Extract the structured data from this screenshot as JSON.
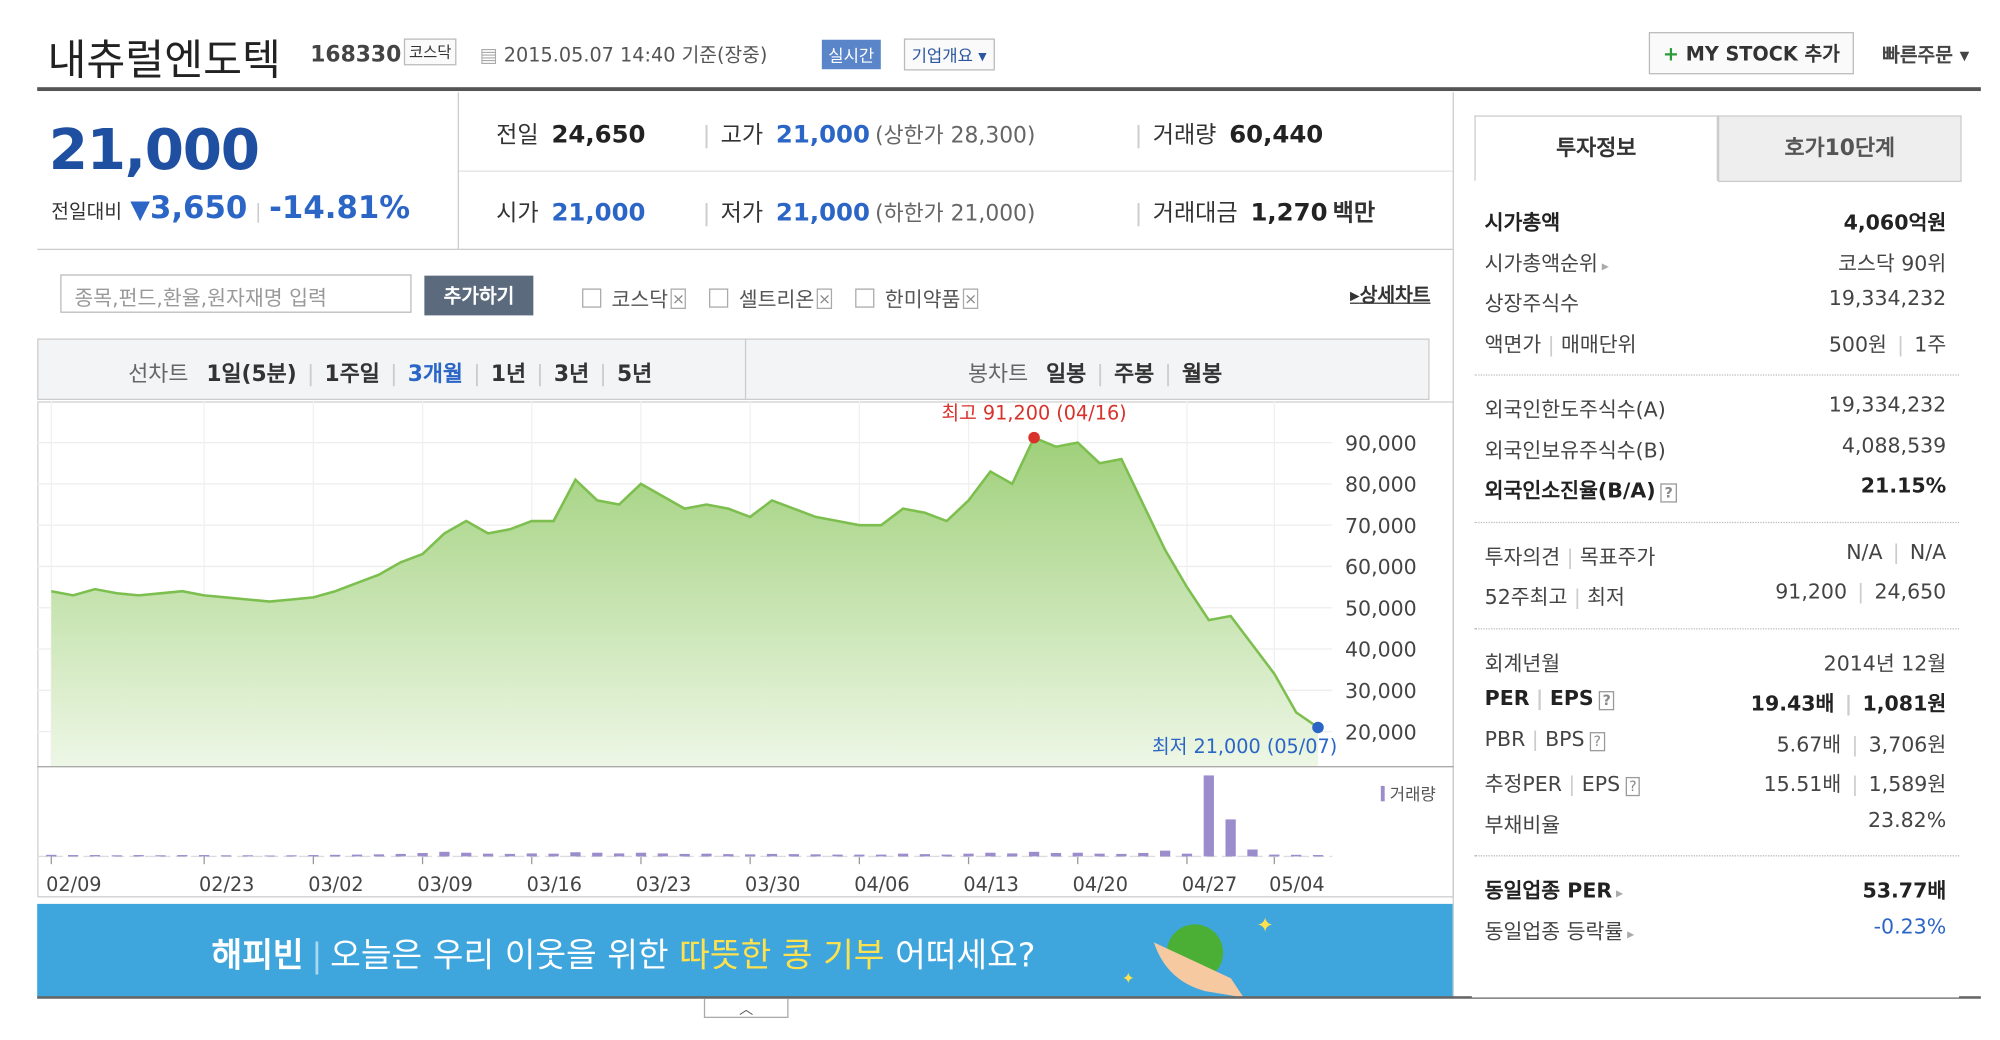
{
  "header": {
    "name": "내츄럴엔도텍",
    "code": "168330",
    "market": "코스닥",
    "datetime": "2015.05.07 14:40 기준(장중)",
    "realtime": "실시간",
    "company_info": "기업개요",
    "my_stock": "MY STOCK 추가",
    "quick_order": "빠른주문"
  },
  "price": {
    "current": "21,000",
    "change_label": "전일대비",
    "change": "3,650",
    "rate": "-14.81%"
  },
  "quotes": [
    {
      "label": "전일",
      "value": "24,650"
    },
    {
      "label": "고가",
      "value": "21,000",
      "note": "(상한가 28,300)"
    },
    {
      "label": "거래량",
      "value": "60,440"
    },
    {
      "label": "시가",
      "value": "21,000"
    },
    {
      "label": "저가",
      "value": "21,000",
      "note": "(하한가 21,000)"
    },
    {
      "label": "거래대금",
      "value": "1,270",
      "unit": "백만"
    }
  ],
  "search": {
    "placeholder": "종목,펀드,환율,원자재명 입력",
    "button": "추가하기",
    "compare": [
      "코스닥",
      "셀트리온",
      "한미약품"
    ],
    "detail": "상세차트"
  },
  "tabs": {
    "line_label": "선차트",
    "periods": [
      "1일(5분)",
      "1주일",
      "3개월",
      "1년",
      "3년",
      "5년"
    ],
    "active_period": 2,
    "candle_label": "봉차트",
    "candles": [
      "일봉",
      "주봉",
      "월봉"
    ]
  },
  "chart_data": {
    "type": "line",
    "color": "#7dbf4f",
    "categories": [
      "02/09",
      null,
      null,
      null,
      null,
      null,
      null,
      "02/23",
      null,
      null,
      null,
      null,
      "03/02",
      null,
      null,
      null,
      null,
      "03/09",
      null,
      null,
      null,
      null,
      "03/16",
      null,
      null,
      null,
      null,
      "03/23",
      null,
      null,
      null,
      null,
      "03/30",
      null,
      null,
      null,
      null,
      "04/06",
      null,
      null,
      null,
      null,
      "04/13",
      null,
      null,
      null,
      null,
      "04/20",
      null,
      null,
      null,
      null,
      "04/27",
      null,
      null,
      null,
      "05/04",
      null,
      null
    ],
    "values": [
      54000,
      53000,
      54500,
      53500,
      53000,
      53500,
      54000,
      53000,
      52500,
      52000,
      51500,
      52000,
      52500,
      54000,
      56000,
      58000,
      61000,
      63000,
      68000,
      71000,
      68000,
      69000,
      71000,
      71000,
      81000,
      76000,
      75000,
      80000,
      77000,
      74000,
      75000,
      74000,
      72000,
      76000,
      74000,
      72000,
      71000,
      70000,
      70000,
      74000,
      73000,
      71000,
      76000,
      83000,
      80000,
      91200,
      89000,
      90000,
      85000,
      86000,
      75000,
      64000,
      55000,
      47000,
      48000,
      41000,
      34000,
      24650,
      21000
    ],
    "ylim": [
      11500,
      100000
    ],
    "yticks": [
      {
        "value": 20000,
        "label": "20,000"
      },
      {
        "value": 30000,
        "label": "30,000"
      },
      {
        "value": 40000,
        "label": "40,000"
      },
      {
        "value": 50000,
        "label": "50,000"
      },
      {
        "value": 60000,
        "label": "60,000"
      },
      {
        "value": 70000,
        "label": "70,000"
      },
      {
        "value": 80000,
        "label": "80,000"
      },
      {
        "value": 90000,
        "label": "90,000"
      }
    ],
    "grid": true,
    "max_label": "최고 91,200 (04/16)",
    "min_label": "최저 21,000 (05/07)",
    "volume": {
      "name": "거래량",
      "color": "#9b8ccc",
      "ylim": [
        0,
        3600000
      ],
      "values": [
        70000,
        60000,
        60000,
        50000,
        60000,
        50000,
        60000,
        60000,
        50000,
        50000,
        40000,
        50000,
        60000,
        70000,
        80000,
        90000,
        110000,
        150000,
        200000,
        160000,
        120000,
        110000,
        130000,
        120000,
        180000,
        160000,
        130000,
        160000,
        130000,
        110000,
        120000,
        100000,
        90000,
        110000,
        100000,
        90000,
        80000,
        80000,
        80000,
        120000,
        100000,
        80000,
        120000,
        160000,
        130000,
        200000,
        150000,
        160000,
        120000,
        110000,
        150000,
        250000,
        120000,
        3500000,
        1600000,
        300000,
        80000,
        70000,
        60440
      ]
    }
  },
  "side": {
    "tabs": [
      "투자정보",
      "호가10단계"
    ],
    "sections": [
      [
        {
          "label": [
            "시가총액"
          ],
          "value": [
            "4,060억원"
          ],
          "bold": true
        },
        {
          "label": [
            "시가총액순위"
          ],
          "value": [
            "코스닥 90위"
          ],
          "link": true
        },
        {
          "label": [
            "상장주식수"
          ],
          "value": [
            "19,334,232"
          ]
        },
        {
          "label": [
            "액면가",
            "매매단위"
          ],
          "value": [
            "500원",
            "1주"
          ]
        }
      ],
      [
        {
          "label": [
            "외국인한도주식수(A)"
          ],
          "value": [
            "19,334,232"
          ]
        },
        {
          "label": [
            "외국인보유주식수(B)"
          ],
          "value": [
            "4,088,539"
          ]
        },
        {
          "label": [
            "외국인소진율(B/A)"
          ],
          "value": [
            "21.15%"
          ],
          "bold": true,
          "help": true
        }
      ],
      [
        {
          "label": [
            "투자의견",
            "목표주가"
          ],
          "value": [
            "N/A",
            "N/A"
          ]
        },
        {
          "label": [
            "52주최고",
            "최저"
          ],
          "value": [
            "91,200",
            "24,650"
          ]
        }
      ],
      [
        {
          "label": [
            "회계년월"
          ],
          "value": [
            "2014년 12월"
          ]
        },
        {
          "label": [
            "PER",
            "EPS"
          ],
          "value": [
            "19.43배",
            "1,081원"
          ],
          "bold": true,
          "help": true
        },
        {
          "label": [
            "PBR",
            "BPS"
          ],
          "value": [
            "5.67배",
            "3,706원"
          ],
          "help": true
        },
        {
          "label": [
            "추정PER",
            "EPS"
          ],
          "value": [
            "15.51배",
            "1,589원"
          ],
          "help": true
        },
        {
          "label": [
            "부채비율"
          ],
          "value": [
            "23.82%"
          ]
        }
      ],
      [
        {
          "label": [
            "동일업종 PER"
          ],
          "value": [
            "53.77배"
          ],
          "bold": true,
          "link": true
        },
        {
          "label": [
            "동일업종 등락률"
          ],
          "value": [
            "-0.23%"
          ],
          "link": true,
          "color": "#2b66c6"
        }
      ]
    ]
  },
  "banner": {
    "brand": "해피빈",
    "text": "오늘은 우리 이웃을 위한",
    "highlight": "따뜻한 콩 기부",
    "tail": "어떠세요?"
  }
}
